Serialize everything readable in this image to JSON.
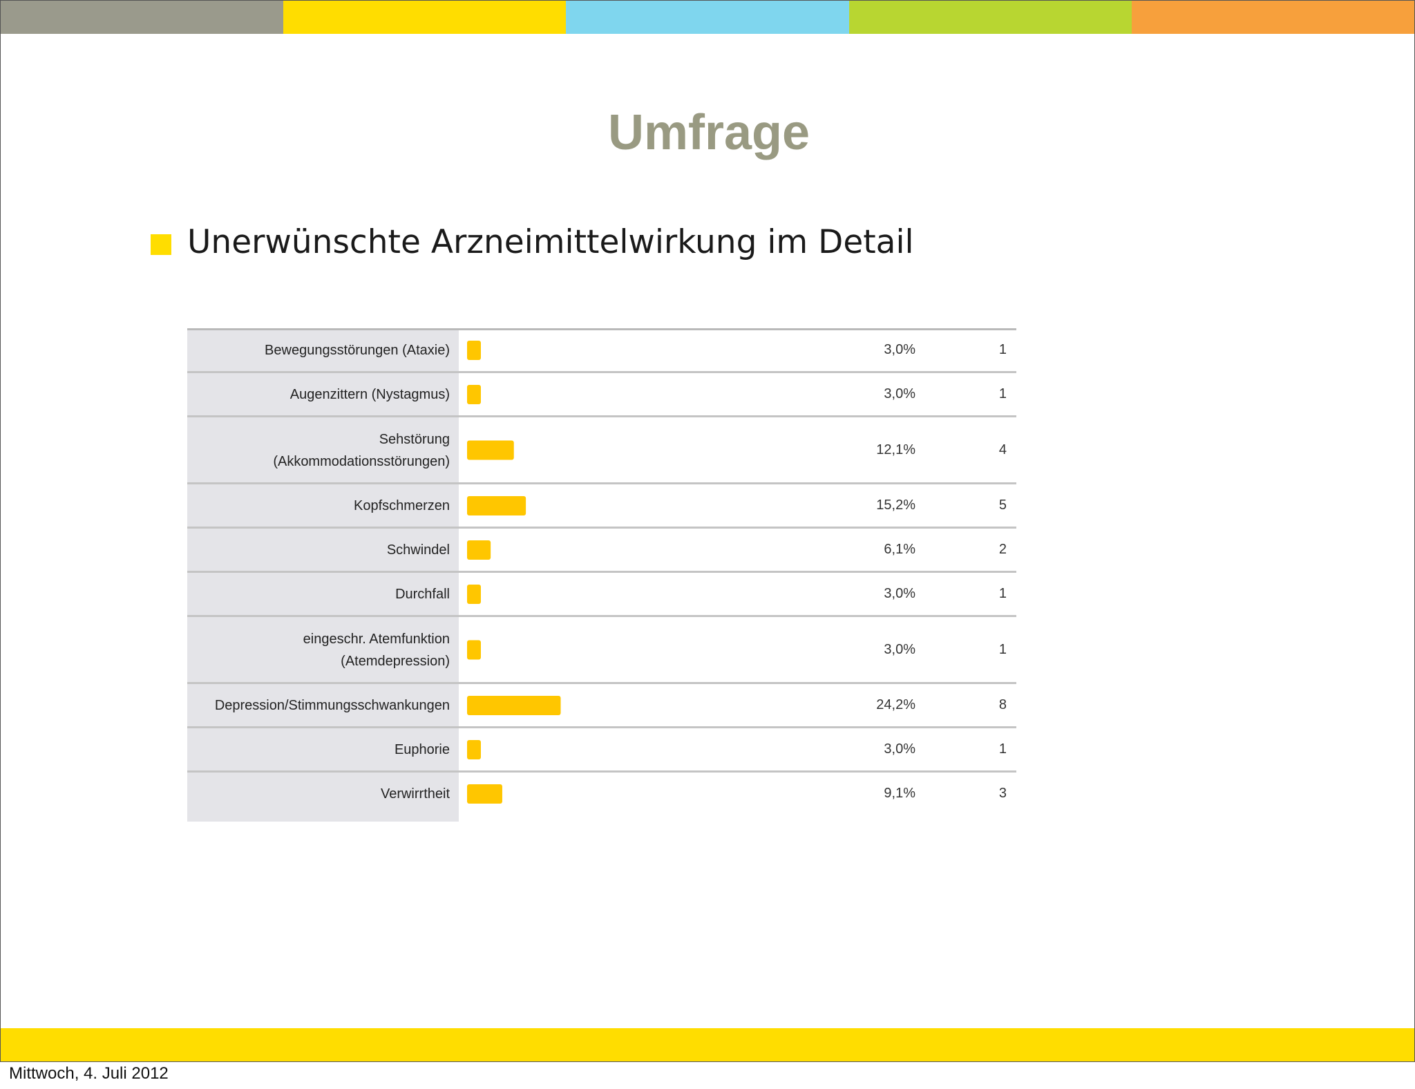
{
  "colors": {
    "top_bar": [
      "#9a9a8c",
      "#ffdd00",
      "#7fd6ee",
      "#b8d631",
      "#f7a03c"
    ],
    "title": "#999a82",
    "bullet": "#ffdd00",
    "bar": "#ffc600",
    "bottom_bar": "#ffdd00"
  },
  "slide": {
    "title": "Umfrage",
    "bullet_text": "Unerwünschte Arzneimittelwirkung im Detail"
  },
  "chart_data": {
    "type": "bar",
    "orientation": "horizontal",
    "xlim": [
      0,
      100
    ],
    "categories": [
      [
        "Bewegungsstörungen (Ataxie)"
      ],
      [
        "Augenzittern (Nystagmus)"
      ],
      [
        "Sehstörung",
        "(Akkommodationsstörungen)"
      ],
      [
        "Kopfschmerzen"
      ],
      [
        "Schwindel"
      ],
      [
        "Durchfall"
      ],
      [
        "eingeschr. Atemfunktion",
        "(Atemdepression)"
      ],
      [
        "Depression/Stimmungsschwankungen"
      ],
      [
        "Euphorie"
      ],
      [
        "Verwirrtheit"
      ]
    ],
    "values": [
      3.0,
      3.0,
      12.1,
      15.2,
      6.1,
      3.0,
      3.0,
      24.2,
      3.0,
      9.1
    ],
    "value_labels": [
      "3,0%",
      "3,0%",
      "12,1%",
      "15,2%",
      "6,1%",
      "3,0%",
      "3,0%",
      "24,2%",
      "3,0%",
      "9,1%"
    ],
    "counts": [
      "1",
      "1",
      "4",
      "5",
      "2",
      "1",
      "1",
      "8",
      "1",
      "3"
    ]
  },
  "footer": {
    "date": "Mittwoch, 4. Juli 2012"
  }
}
